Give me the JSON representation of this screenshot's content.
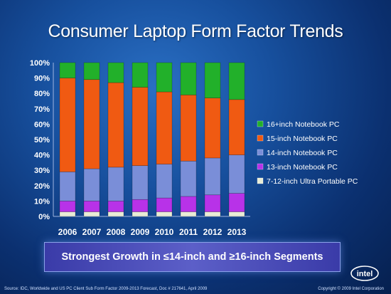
{
  "slide": {
    "title": "Consumer Laptop Form Factor Trends",
    "banner": "Strongest Growth in ≤14-inch and ≥16-inch  Segments",
    "source": "Source: IDC, Worldwide and US PC Client Sub Form Factor 2009-2013 Forecast, Doc # 217641, April 2009",
    "copyright": "Copyright © 2009 Intel Corporation",
    "logo_text": "intel"
  },
  "chart_data": {
    "type": "bar",
    "stacked": true,
    "categories": [
      "2006",
      "2007",
      "2008",
      "2009",
      "2010",
      "2011",
      "2012",
      "2013"
    ],
    "y_ticks": [
      "0%",
      "10%",
      "20%",
      "30%",
      "40%",
      "50%",
      "60%",
      "70%",
      "80%",
      "90%",
      "100%"
    ],
    "ylim": [
      0,
      100
    ],
    "legend_position": "right",
    "series": [
      {
        "name": "7-12-inch Ultra Portable PC",
        "color": "#e8ecd6",
        "values": [
          3,
          3,
          3,
          3,
          3,
          3,
          3,
          3
        ]
      },
      {
        "name": "13-inch Notebook PC",
        "color": "#b832e8",
        "values": [
          7,
          7,
          7,
          8,
          9,
          10,
          11,
          12
        ]
      },
      {
        "name": "14-inch Notebook PC",
        "color": "#7a8ed8",
        "values": [
          19,
          21,
          22,
          22,
          22,
          23,
          24,
          25
        ]
      },
      {
        "name": "15-inch Notebook PC",
        "color": "#f05a12",
        "values": [
          61,
          58,
          55,
          51,
          47,
          43,
          39,
          36
        ]
      },
      {
        "name": "16+inch Notebook PC",
        "color": "#22b02a",
        "values": [
          10,
          11,
          13,
          16,
          19,
          21,
          23,
          24
        ]
      }
    ],
    "legend_order": [
      4,
      3,
      2,
      1,
      0
    ]
  }
}
